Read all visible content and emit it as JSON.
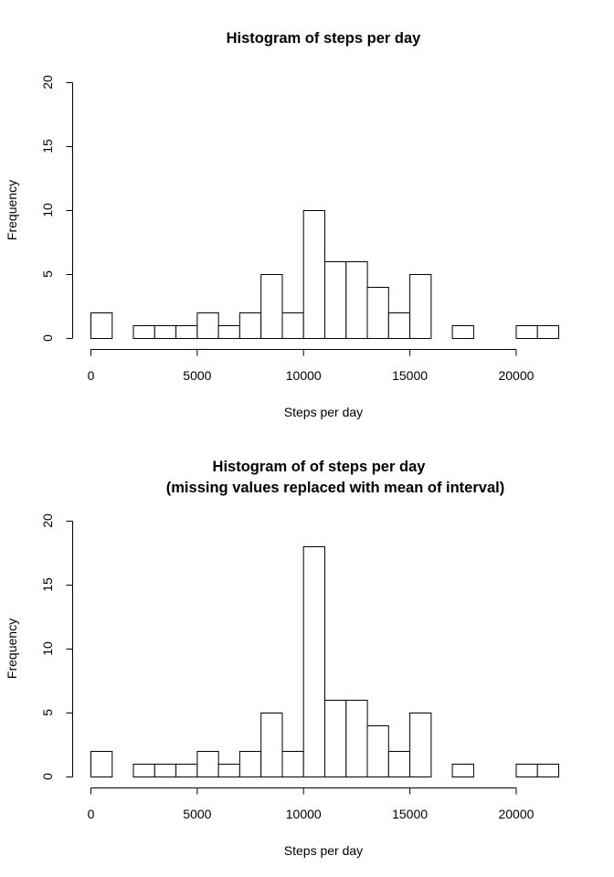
{
  "chart_data": [
    {
      "type": "bar",
      "title_lines": [
        "Histogram of steps per day"
      ],
      "xlabel": "Steps per day",
      "ylabel": "Frequency",
      "bin_edges": [
        0,
        1000,
        2000,
        3000,
        4000,
        5000,
        6000,
        7000,
        8000,
        9000,
        10000,
        11000,
        12000,
        13000,
        14000,
        15000,
        16000,
        17000,
        18000,
        19000,
        20000,
        21000,
        22000
      ],
      "values": [
        2,
        0,
        1,
        1,
        1,
        2,
        1,
        2,
        5,
        2,
        10,
        6,
        6,
        4,
        2,
        5,
        0,
        1,
        0,
        0,
        1,
        1
      ],
      "xlim": [
        0,
        22000
      ],
      "ylim": [
        0,
        20
      ],
      "xticks": [
        0,
        5000,
        10000,
        15000,
        20000
      ],
      "yticks": [
        0,
        5,
        10,
        15,
        20
      ],
      "grid": false
    },
    {
      "type": "bar",
      "title_lines": [
        "Histogram of  of steps per day",
        "(missing values replaced with mean of interval)"
      ],
      "xlabel": "Steps per day",
      "ylabel": "Frequency",
      "bin_edges": [
        0,
        1000,
        2000,
        3000,
        4000,
        5000,
        6000,
        7000,
        8000,
        9000,
        10000,
        11000,
        12000,
        13000,
        14000,
        15000,
        16000,
        17000,
        18000,
        19000,
        20000,
        21000,
        22000
      ],
      "values": [
        2,
        0,
        1,
        1,
        1,
        2,
        1,
        2,
        5,
        2,
        18,
        6,
        6,
        4,
        2,
        5,
        0,
        1,
        0,
        0,
        1,
        1
      ],
      "xlim": [
        0,
        22000
      ],
      "ylim": [
        0,
        20
      ],
      "xticks": [
        0,
        5000,
        10000,
        15000,
        20000
      ],
      "yticks": [
        0,
        5,
        10,
        15,
        20
      ],
      "grid": false
    }
  ]
}
